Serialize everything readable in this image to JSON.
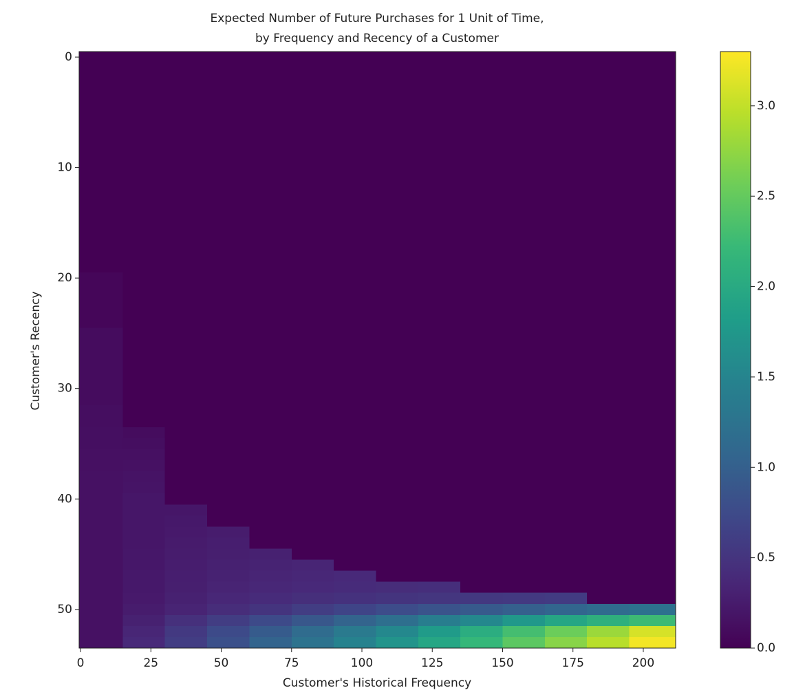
{
  "chart_data": {
    "type": "heatmap",
    "title": "Expected Number of Future Purchases for 1 Unit of Time,",
    "subtitle": "by Frequency and Recency of a Customer",
    "x_label": "Customer's Historical Frequency",
    "y_label": "Customer's Recency",
    "colormap": "viridis",
    "clim": [
      0,
      3.3
    ],
    "colorbar_ticks": [
      {
        "value": 0,
        "label": "0.0"
      },
      {
        "value": 0.5,
        "label": "0.5"
      },
      {
        "value": 1,
        "label": "1.0"
      },
      {
        "value": 1.5,
        "label": "1.5"
      },
      {
        "value": 2,
        "label": "2.0"
      },
      {
        "value": 2.5,
        "label": "2.5"
      },
      {
        "value": 3,
        "label": "3.0"
      }
    ],
    "xlim": [
      -0.5,
      211.5
    ],
    "ylim": [
      -0.5,
      53.5
    ],
    "y_inverted": true,
    "xticks": [
      0,
      25,
      50,
      75,
      100,
      125,
      150,
      175,
      200
    ],
    "yticks": [
      0,
      10,
      20,
      30,
      40,
      50
    ],
    "x_edges": [
      -0.5,
      15,
      30,
      45,
      60,
      75,
      90,
      105,
      120,
      135,
      150,
      165,
      180,
      195,
      211.5
    ],
    "y_edges": [
      -0.5,
      19.5,
      24.5,
      29.5,
      30.5,
      31.5,
      32.5,
      33.5,
      34.5,
      35.5,
      36.5,
      37.5,
      38.5,
      39.5,
      40.5,
      41.5,
      42.5,
      43.5,
      44.5,
      45.5,
      46.5,
      47.5,
      48.5,
      49.5,
      50.5,
      51.5,
      52.5,
      53.5
    ],
    "values": [
      [
        0,
        0,
        0,
        0,
        0,
        0,
        0,
        0,
        0,
        0,
        0,
        0,
        0,
        0
      ],
      [
        0.05,
        0,
        0,
        0,
        0,
        0,
        0,
        0,
        0,
        0,
        0,
        0,
        0,
        0
      ],
      [
        0.1,
        0,
        0,
        0,
        0,
        0,
        0,
        0,
        0,
        0,
        0,
        0,
        0,
        0
      ],
      [
        0.1,
        0,
        0,
        0,
        0,
        0,
        0,
        0,
        0,
        0,
        0,
        0,
        0,
        0
      ],
      [
        0.1,
        0,
        0,
        0,
        0,
        0,
        0,
        0,
        0,
        0,
        0,
        0,
        0,
        0
      ],
      [
        0.12,
        0,
        0,
        0,
        0,
        0,
        0,
        0,
        0,
        0,
        0,
        0,
        0,
        0
      ],
      [
        0.12,
        0,
        0,
        0,
        0,
        0,
        0,
        0,
        0,
        0,
        0,
        0,
        0,
        0
      ],
      [
        0.13,
        0.1,
        0,
        0,
        0,
        0,
        0,
        0,
        0,
        0,
        0,
        0,
        0,
        0
      ],
      [
        0.13,
        0.12,
        0,
        0,
        0,
        0,
        0,
        0,
        0,
        0,
        0,
        0,
        0,
        0
      ],
      [
        0.14,
        0.14,
        0,
        0,
        0,
        0,
        0,
        0,
        0,
        0,
        0,
        0,
        0,
        0
      ],
      [
        0.14,
        0.15,
        0,
        0,
        0,
        0,
        0,
        0,
        0,
        0,
        0,
        0,
        0,
        0
      ],
      [
        0.15,
        0.17,
        0,
        0,
        0,
        0,
        0,
        0,
        0,
        0,
        0,
        0,
        0,
        0
      ],
      [
        0.15,
        0.18,
        0,
        0,
        0,
        0,
        0,
        0,
        0,
        0,
        0,
        0,
        0,
        0
      ],
      [
        0.15,
        0.2,
        0,
        0,
        0,
        0,
        0,
        0,
        0,
        0,
        0,
        0,
        0,
        0
      ],
      [
        0.15,
        0.2,
        0.2,
        0,
        0,
        0,
        0,
        0,
        0,
        0,
        0,
        0,
        0,
        0
      ],
      [
        0.15,
        0.2,
        0.22,
        0,
        0,
        0,
        0,
        0,
        0,
        0,
        0,
        0,
        0,
        0
      ],
      [
        0.15,
        0.2,
        0.23,
        0.25,
        0,
        0,
        0,
        0,
        0,
        0,
        0,
        0,
        0,
        0
      ],
      [
        0.15,
        0.2,
        0.24,
        0.27,
        0,
        0,
        0,
        0,
        0,
        0,
        0,
        0,
        0,
        0
      ],
      [
        0.15,
        0.21,
        0.25,
        0.28,
        0.3,
        0,
        0,
        0,
        0,
        0,
        0,
        0,
        0,
        0
      ],
      [
        0.15,
        0.21,
        0.26,
        0.3,
        0.32,
        0.34,
        0,
        0,
        0,
        0,
        0,
        0,
        0,
        0
      ],
      [
        0.15,
        0.22,
        0.27,
        0.31,
        0.34,
        0.36,
        0.38,
        0,
        0,
        0,
        0,
        0,
        0,
        0
      ],
      [
        0.15,
        0.22,
        0.28,
        0.33,
        0.36,
        0.38,
        0.4,
        0.42,
        0.43,
        0,
        0,
        0,
        0,
        0
      ],
      [
        0.15,
        0.23,
        0.3,
        0.36,
        0.4,
        0.44,
        0.47,
        0.5,
        0.52,
        0.54,
        0.56,
        0.58,
        0,
        0
      ],
      [
        0.15,
        0.25,
        0.33,
        0.42,
        0.5,
        0.6,
        0.68,
        0.77,
        0.85,
        0.93,
        1.0,
        1.08,
        1.15,
        1.22
      ],
      [
        0.15,
        0.3,
        0.45,
        0.6,
        0.75,
        0.9,
        1.05,
        1.2,
        1.4,
        1.55,
        1.75,
        1.95,
        2.1,
        2.25
      ],
      [
        0.15,
        0.35,
        0.55,
        0.75,
        0.95,
        1.15,
        1.35,
        1.55,
        1.8,
        2.05,
        2.3,
        2.55,
        2.8,
        3.1
      ],
      [
        0.15,
        0.38,
        0.6,
        0.82,
        1.05,
        1.25,
        1.47,
        1.7,
        1.95,
        2.2,
        2.45,
        2.7,
        2.95,
        3.25
      ]
    ]
  }
}
